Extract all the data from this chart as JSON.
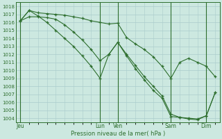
{
  "background_color": "#cce8e0",
  "grid_color": "#aacccc",
  "line_color": "#2d6e2d",
  "ylabel": "Pression niveau de la mer( hPa )",
  "ylim": [
    1003.5,
    1018.5
  ],
  "yticks": [
    1004,
    1005,
    1006,
    1007,
    1008,
    1009,
    1010,
    1011,
    1012,
    1013,
    1014,
    1015,
    1016,
    1017,
    1018
  ],
  "xtick_labels": [
    "Jeu",
    "Lun",
    "Ven",
    "Sam",
    "Dim"
  ],
  "xtick_positions": [
    0,
    9,
    11,
    17,
    21
  ],
  "total_points": 23,
  "vlines": [
    0,
    9,
    11,
    17,
    21
  ],
  "series1_x": [
    0,
    1,
    2,
    3,
    4,
    5,
    6,
    7,
    8,
    9,
    10,
    11,
    12,
    13,
    14,
    15,
    16,
    17,
    18,
    19,
    20,
    21,
    22
  ],
  "series1_y": [
    1016.2,
    1017.5,
    1017.2,
    1017.1,
    1017.0,
    1016.9,
    1016.7,
    1016.5,
    1016.2,
    1016.0,
    1015.8,
    1015.9,
    1014.1,
    1013.3,
    1012.6,
    1011.7,
    1010.5,
    1009.0,
    1011.0,
    1011.5,
    1011.0,
    1010.5,
    1009.2
  ],
  "series2_x": [
    0,
    1,
    2,
    3,
    4,
    5,
    6,
    7,
    8,
    9,
    10,
    11,
    12,
    13,
    14,
    15,
    16,
    17,
    18,
    19,
    20,
    21,
    22
  ],
  "series2_y": [
    1016.2,
    1017.5,
    1016.8,
    1016.0,
    1015.0,
    1014.0,
    1013.0,
    1011.8,
    1010.5,
    1009.0,
    1012.0,
    1013.5,
    1011.8,
    1010.2,
    1008.8,
    1007.5,
    1006.5,
    1004.2,
    1004.1,
    1003.9,
    1003.8,
    1004.3,
    1007.2
  ],
  "series3_x": [
    0,
    1,
    2,
    3,
    4,
    5,
    6,
    7,
    8,
    9,
    10,
    11,
    12,
    13,
    14,
    15,
    16,
    17,
    18,
    19,
    20,
    21,
    22
  ],
  "series3_y": [
    1016.2,
    1016.7,
    1016.7,
    1016.6,
    1016.4,
    1015.7,
    1014.8,
    1013.8,
    1012.6,
    1011.2,
    1012.0,
    1013.5,
    1012.0,
    1010.6,
    1009.2,
    1008.0,
    1006.8,
    1004.5,
    1004.1,
    1004.0,
    1003.9,
    1004.3,
    1007.2
  ]
}
